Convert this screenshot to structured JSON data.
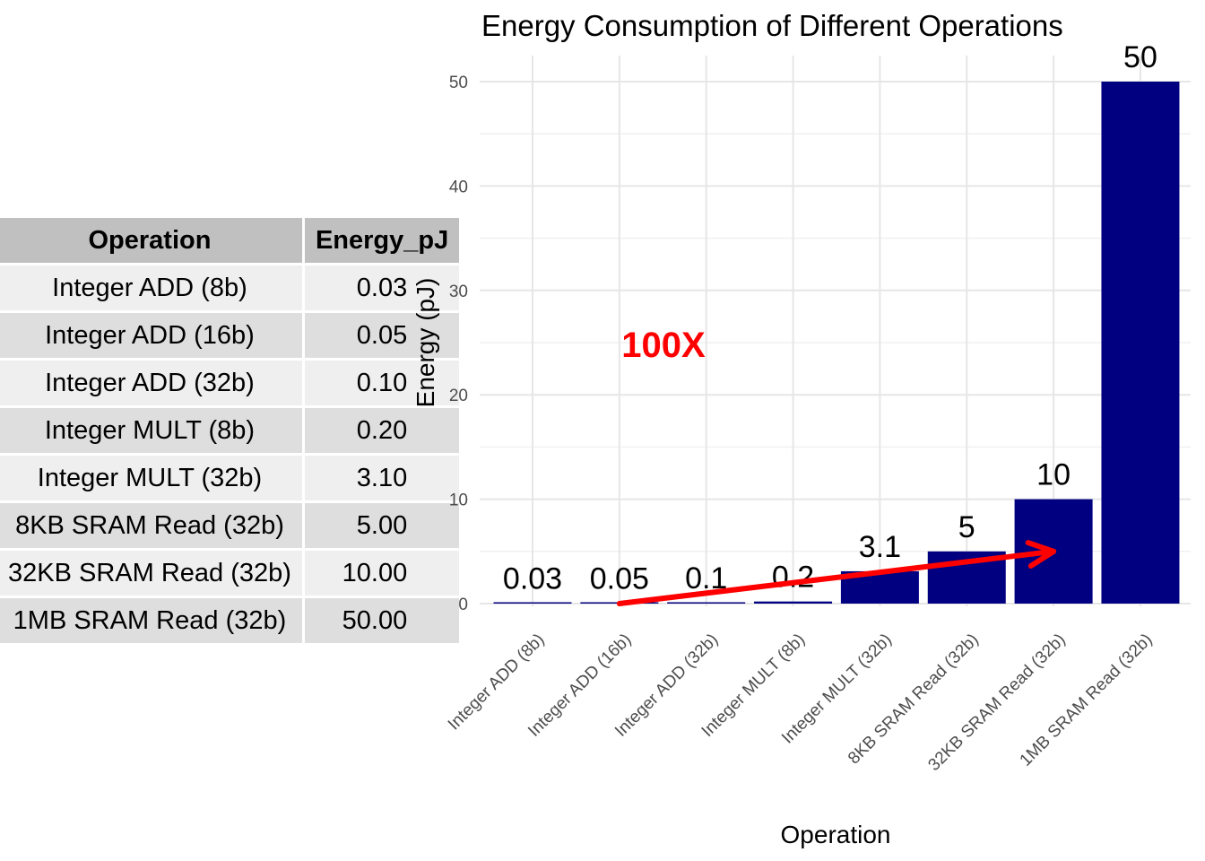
{
  "table": {
    "headers": [
      "Operation",
      "Energy_pJ"
    ],
    "rows": [
      {
        "operation": "Integer ADD (8b)",
        "energy": "0.03"
      },
      {
        "operation": "Integer ADD (16b)",
        "energy": "0.05"
      },
      {
        "operation": "Integer ADD (32b)",
        "energy": "0.10"
      },
      {
        "operation": "Integer MULT (8b)",
        "energy": "0.20"
      },
      {
        "operation": "Integer MULT (32b)",
        "energy": "3.10"
      },
      {
        "operation": "8KB SRAM Read (32b)",
        "energy": "5.00"
      },
      {
        "operation": "32KB SRAM Read (32b)",
        "energy": "10.00"
      },
      {
        "operation": "1MB SRAM Read (32b)",
        "energy": "50.00"
      }
    ]
  },
  "chart_data": {
    "type": "bar",
    "title": "Energy Consumption of Different Operations",
    "xlabel": "Operation",
    "ylabel": "Energy (pJ)",
    "categories": [
      "Integer ADD (8b)",
      "Integer ADD (16b)",
      "Integer ADD (32b)",
      "Integer MULT (8b)",
      "Integer MULT (32b)",
      "8KB SRAM Read (32b)",
      "32KB SRAM Read (32b)",
      "1MB SRAM Read (32b)"
    ],
    "values": [
      0.03,
      0.05,
      0.1,
      0.2,
      3.1,
      5,
      10,
      50
    ],
    "value_labels": [
      "0.03",
      "0.05",
      "0.1",
      "0.2",
      "3.1",
      "5",
      "10",
      "50"
    ],
    "ylim": [
      0,
      50
    ],
    "yticks": [
      0,
      10,
      20,
      30,
      40,
      50
    ],
    "grid": true,
    "bar_color": "#000080",
    "annotation": {
      "text": "100X",
      "color": "#ff0000",
      "arrow_from": {
        "category": "Integer ADD (16b)",
        "y": 0
      },
      "arrow_to": {
        "category": "32KB SRAM Read (32b)",
        "y": 5
      }
    }
  }
}
